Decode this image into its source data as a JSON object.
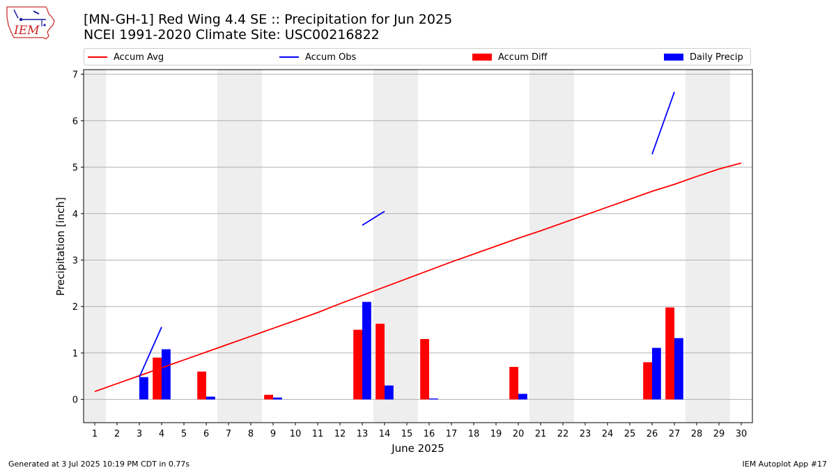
{
  "header": {
    "title_line1": "[MN-GH-1] Red Wing 4.4 SE :: Precipitation for Jun 2025",
    "title_line2": "NCEI 1991-2020 Climate Site: USC00216822"
  },
  "logo": {
    "text": "IEM",
    "icon": "iem-iowa-weather-logo-icon"
  },
  "footer": {
    "generated": "Generated at 3 Jul 2025 10:19 PM CDT in 0.77s",
    "app": "IEM Autoplot App #17"
  },
  "colors": {
    "avg": "#ff0000",
    "obs": "#0000ff",
    "diff": "#ff0000",
    "daily": "#0000ff",
    "weekend_shade": "#eeeeee",
    "grid": "#b0b0b0"
  },
  "chart_data": {
    "type": "bar",
    "title": "[MN-GH-1] Red Wing 4.4 SE :: Precipitation for Jun 2025",
    "subtitle": "NCEI 1991-2020 Climate Site: USC00216822",
    "xlabel": "June 2025",
    "ylabel": "Precipitation [inch]",
    "xlim": [
      0.5,
      30.5
    ],
    "ylim": [
      -0.5,
      7.1
    ],
    "yticks": [
      0,
      1,
      2,
      3,
      4,
      5,
      6,
      7
    ],
    "x": [
      1,
      2,
      3,
      4,
      5,
      6,
      7,
      8,
      9,
      10,
      11,
      12,
      13,
      14,
      15,
      16,
      17,
      18,
      19,
      20,
      21,
      22,
      23,
      24,
      25,
      26,
      27,
      28,
      29,
      30
    ],
    "grid": "horizontal",
    "legend_placement": "top",
    "shaded_weekend_days": [
      1,
      7,
      8,
      14,
      15,
      21,
      22,
      28,
      29
    ],
    "series": [
      {
        "name": "Accum Avg",
        "kind": "line",
        "values": [
          0.17,
          0.34,
          0.51,
          0.68,
          0.85,
          1.02,
          1.19,
          1.36,
          1.53,
          1.7,
          1.87,
          2.06,
          2.24,
          2.42,
          2.6,
          2.78,
          2.96,
          3.13,
          3.3,
          3.47,
          3.63,
          3.8,
          3.97,
          4.14,
          4.31,
          4.48,
          4.63,
          4.8,
          4.96,
          5.09
        ]
      },
      {
        "name": "Accum Obs",
        "kind": "line",
        "values": [
          null,
          null,
          0.48,
          1.56,
          null,
          null,
          null,
          null,
          null,
          null,
          null,
          null,
          3.75,
          4.05,
          null,
          null,
          null,
          null,
          null,
          null,
          null,
          null,
          null,
          null,
          null,
          5.28,
          6.62,
          null,
          null,
          null
        ]
      },
      {
        "name": "Accum Diff",
        "kind": "bar",
        "values": [
          0,
          0,
          0,
          0.9,
          0,
          0.6,
          0,
          0,
          0.1,
          0,
          0,
          0,
          1.5,
          1.63,
          0,
          1.3,
          0,
          0,
          0,
          0.7,
          0,
          0,
          0,
          0,
          0,
          0.8,
          1.98,
          0,
          0,
          0
        ]
      },
      {
        "name": "Daily Precip",
        "kind": "bar",
        "values": [
          0,
          0,
          0.48,
          1.08,
          0,
          0.06,
          0,
          0,
          0.04,
          0,
          0,
          0,
          2.1,
          0.3,
          0,
          0.02,
          0,
          0,
          0,
          0.12,
          0,
          0,
          0,
          0,
          0,
          1.11,
          1.32,
          0,
          0,
          0
        ]
      }
    ]
  }
}
